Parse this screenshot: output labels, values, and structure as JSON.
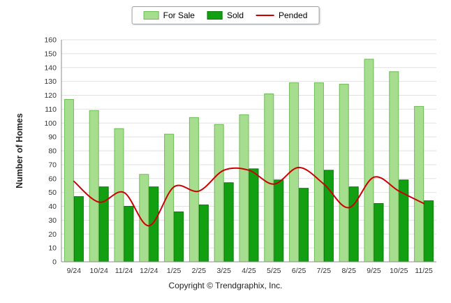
{
  "legend": {
    "for_sale_label": "For Sale",
    "sold_label": "Sold",
    "pended_label": "Pended"
  },
  "footer_text": "Copyright © Trendgraphix, Inc.",
  "colors": {
    "for_sale_fill": "#a6dd8e",
    "for_sale_border": "#6cbd54",
    "sold_fill": "#12a012",
    "sold_border": "#0b7a0b",
    "pended_line": "#cc0000",
    "grid": "#e2e2e2",
    "axis": "#8c8c8c",
    "tick_text": "#333333",
    "axis_title_text": "#222222"
  },
  "chart_data": {
    "type": "bar",
    "categories": [
      "9/24",
      "10/24",
      "11/24",
      "12/24",
      "1/25",
      "2/25",
      "3/25",
      "4/25",
      "5/25",
      "6/25",
      "7/25",
      "8/25",
      "9/25",
      "10/25",
      "11/25"
    ],
    "series": [
      {
        "name": "For Sale",
        "type": "bar",
        "values": [
          117,
          109,
          96,
          63,
          92,
          104,
          99,
          106,
          121,
          129,
          129,
          128,
          146,
          137,
          112
        ]
      },
      {
        "name": "Sold",
        "type": "bar",
        "values": [
          47,
          54,
          40,
          54,
          36,
          41,
          57,
          67,
          59,
          53,
          66,
          54,
          42,
          59,
          44
        ]
      },
      {
        "name": "Pended",
        "type": "line",
        "values": [
          58,
          43,
          50,
          26,
          54,
          51,
          66,
          66,
          56,
          68,
          56,
          39,
          61,
          51,
          42
        ]
      }
    ],
    "title": "",
    "xlabel": "",
    "ylabel": "Number of Homes",
    "ylim": [
      0,
      160
    ],
    "ytick_step": 10,
    "grid": true,
    "legend_position": "top"
  }
}
